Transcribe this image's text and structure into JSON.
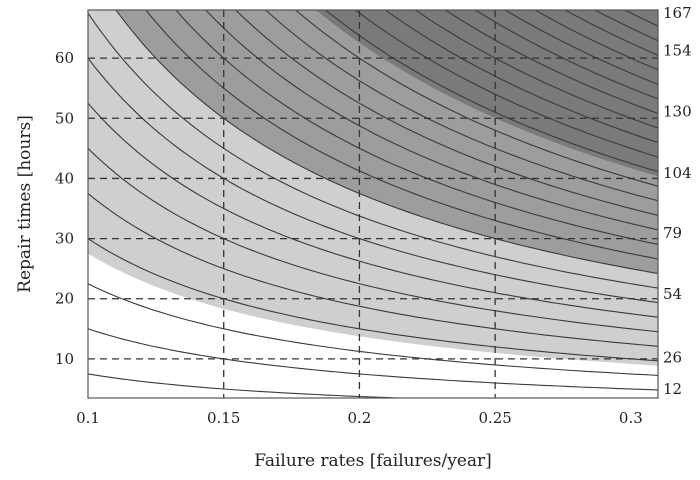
{
  "chart_data": {
    "type": "contour",
    "xlabel": "Failure rates [failures/year]",
    "ylabel": "Repair times [hours]",
    "xlim": [
      0.1,
      0.31
    ],
    "ylim": [
      3.5,
      68
    ],
    "x_ticks": [
      0.1,
      0.15,
      0.2,
      0.25,
      0.3
    ],
    "x_tick_labels": [
      "0.1",
      "0.15",
      "0.2",
      "0.25",
      "0.3"
    ],
    "y_ticks": [
      10,
      20,
      30,
      40,
      50,
      60
    ],
    "y_tick_labels": [
      "10",
      "20",
      "30",
      "40",
      "50",
      "60"
    ],
    "grid_x": [
      0.15,
      0.2,
      0.25
    ],
    "grid_y": [
      10,
      20,
      30,
      40,
      50,
      60
    ],
    "grid_style": "dashed",
    "contour_form": "z = failure_rate * repair_time",
    "contour_levels": [
      0.75,
      1.5,
      2.25,
      3.0,
      3.75,
      4.5,
      5.25,
      6.0,
      6.75,
      7.5,
      8.25,
      9.0,
      9.75,
      10.5,
      11.25,
      12.0,
      12.75,
      13.5,
      14.25,
      15.0,
      15.75,
      16.5,
      17.25,
      18.0,
      18.75,
      19.5,
      20.25
    ],
    "shading_bands": [
      {
        "from": 0,
        "to": 2.75,
        "color": "#ffffff"
      },
      {
        "from": 2.75,
        "to": 7.5,
        "color": "#cfcfcf"
      },
      {
        "from": 7.5,
        "to": 12.5,
        "color": "#9d9d9d"
      },
      {
        "from": 12.5,
        "to": 99,
        "color": "#7a7a7a"
      }
    ],
    "right_labels": [
      {
        "text": "167",
        "y": 67.5
      },
      {
        "text": "154",
        "y": 61.3
      },
      {
        "text": "130",
        "y": 51.1
      },
      {
        "text": "104",
        "y": 40.9
      },
      {
        "text": "79",
        "y": 30.9
      },
      {
        "text": "54",
        "y": 20.8
      },
      {
        "text": "26",
        "y": 10.2
      },
      {
        "text": "12",
        "y": 5.0
      }
    ]
  }
}
